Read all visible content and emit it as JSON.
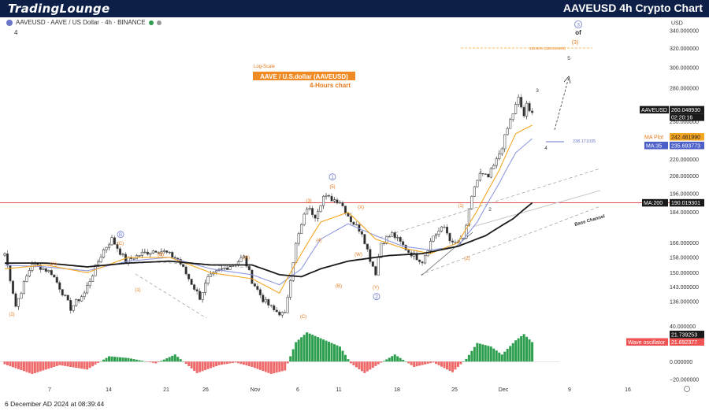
{
  "header": {
    "logo_text": "TradingLounge",
    "title": "AAVEUSD 4h Crypto Chart"
  },
  "symbol_info": {
    "text": "AAVEUSD · AAVE / US Dollar · 4h · BINANCE",
    "sub": "4"
  },
  "footer": {
    "timestamp": "6 December AD 2024 at 08:39:44"
  },
  "colors": {
    "header_bg": "#0e1f47",
    "orange": "#f5a623",
    "label_orange": "#e8791b",
    "blue_ma": "#8f99e0",
    "ma200": "#1a1a1a",
    "red_line": "#e05252",
    "osc_green": "#2e9e4f",
    "osc_red": "#ef6b6b",
    "wave_blue": "#6a77c9"
  },
  "annotations": {
    "log_scale": "Log-Scale",
    "chart_title_box": "AAVE / U.S.dollar (AAVEUSD)",
    "chart_subtitle": "4-Hours chart",
    "fib_label": "423.60% (320.844065)",
    "fib_238_label": "238.171035",
    "base_channel": "Base Channel",
    "top_of": "of",
    "top_circle": "3",
    "top_paren3": "(3)"
  },
  "wave_labels": [
    {
      "t": "(A)",
      "c": "o"
    },
    {
      "t": "(B)",
      "c": "o"
    },
    {
      "t": "(C)",
      "c": "o"
    },
    {
      "t": "B",
      "c": "b"
    },
    {
      "t": "(1)",
      "c": "o"
    },
    {
      "t": "(2)",
      "c": "o"
    },
    {
      "t": "(A)",
      "c": "o"
    },
    {
      "t": "(B)",
      "c": "o"
    },
    {
      "t": "(C)",
      "c": "o"
    },
    {
      "t": "(3)",
      "c": "o"
    },
    {
      "t": "(4)",
      "c": "o"
    },
    {
      "t": "(5)",
      "c": "o"
    },
    {
      "t": "1",
      "c": "b"
    },
    {
      "t": "(X)",
      "c": "o"
    },
    {
      "t": "(W)",
      "c": "o"
    },
    {
      "t": "(Y)",
      "c": "o"
    },
    {
      "t": "2",
      "c": "b"
    },
    {
      "t": "(1)",
      "c": "o"
    },
    {
      "t": "(2)",
      "c": "o"
    },
    {
      "t": "1",
      "c": "k"
    },
    {
      "t": "2",
      "c": "k"
    },
    {
      "t": "3",
      "c": "k"
    },
    {
      "t": "4",
      "c": "k"
    },
    {
      "t": "5",
      "c": "k"
    }
  ],
  "price_tags": {
    "usd": "USD",
    "last_symbol": "AAVEUSD",
    "last_price": "260.048930",
    "countdown": "02:20:16",
    "ma_plot_name": "MA Plot",
    "ma_plot_value": "242.481990",
    "ma35_name": "MA:35",
    "ma35_value": "235.693773",
    "ma200_name": "MA:200",
    "ma200_value": "190.019301",
    "osc_top_value": "21.739253",
    "osc_name": "Wave oscillator",
    "osc_value": "21.692377"
  },
  "chart_data": {
    "type": "candlestick",
    "y_scale": "log",
    "y_axis_ticks": [
      "340.000000",
      "320.000000",
      "300.000000",
      "280.000000",
      "250.000000",
      "230.000000",
      "220.000000",
      "208.000000",
      "196.000000",
      "184.000000",
      "166.000000",
      "158.000000",
      "150.000000",
      "143.000000",
      "136.000000"
    ],
    "osc_axis_ticks": [
      "40.000000",
      "0.000000",
      "−20.000000"
    ],
    "x_axis_ticks": [
      "7",
      "14",
      "21",
      "26",
      "Nov",
      "6",
      "11",
      "18",
      "25",
      "Dec",
      "9",
      "16"
    ],
    "ylim": [
      128,
      350
    ],
    "x_count": 200,
    "price_anchors": [
      [
        0,
        160
      ],
      [
        4,
        134
      ],
      [
        10,
        155
      ],
      [
        17,
        150
      ],
      [
        24,
        133
      ],
      [
        29,
        140
      ],
      [
        36,
        162
      ],
      [
        39,
        168
      ],
      [
        44,
        156
      ],
      [
        50,
        160
      ],
      [
        55,
        162
      ],
      [
        58,
        161
      ],
      [
        63,
        157
      ],
      [
        67,
        147
      ],
      [
        71,
        138
      ],
      [
        74,
        147
      ],
      [
        78,
        151
      ],
      [
        84,
        155
      ],
      [
        87,
        158
      ],
      [
        90,
        146
      ],
      [
        94,
        137
      ],
      [
        98,
        132
      ],
      [
        102,
        130
      ],
      [
        106,
        165
      ],
      [
        110,
        187
      ],
      [
        113,
        182
      ],
      [
        116,
        194
      ],
      [
        122,
        191
      ],
      [
        126,
        179
      ],
      [
        130,
        172
      ],
      [
        133,
        157
      ],
      [
        135,
        150
      ],
      [
        137,
        166
      ],
      [
        141,
        171
      ],
      [
        147,
        161
      ],
      [
        152,
        156
      ],
      [
        156,
        170
      ],
      [
        160,
        175
      ],
      [
        163,
        165
      ],
      [
        167,
        168
      ],
      [
        171,
        201
      ],
      [
        173,
        209
      ],
      [
        176,
        207
      ],
      [
        179,
        219
      ],
      [
        181,
        230
      ],
      [
        184,
        251
      ],
      [
        187,
        270
      ],
      [
        189,
        255
      ],
      [
        190,
        264
      ],
      [
        191,
        258
      ],
      [
        192,
        260
      ]
    ],
    "ma_orange_anchors": [
      [
        0,
        152
      ],
      [
        15,
        154
      ],
      [
        30,
        150
      ],
      [
        45,
        158
      ],
      [
        60,
        158
      ],
      [
        75,
        150
      ],
      [
        90,
        147
      ],
      [
        100,
        140
      ],
      [
        108,
        160
      ],
      [
        115,
        178
      ],
      [
        125,
        184
      ],
      [
        135,
        168
      ],
      [
        145,
        163
      ],
      [
        155,
        160
      ],
      [
        165,
        166
      ],
      [
        172,
        185
      ],
      [
        180,
        212
      ],
      [
        186,
        240
      ],
      [
        192,
        247
      ]
    ],
    "ma_blue_anchors": [
      [
        0,
        154
      ],
      [
        15,
        153
      ],
      [
        30,
        151
      ],
      [
        45,
        156
      ],
      [
        60,
        158
      ],
      [
        75,
        152
      ],
      [
        90,
        149
      ],
      [
        100,
        144
      ],
      [
        108,
        152
      ],
      [
        115,
        168
      ],
      [
        125,
        177
      ],
      [
        135,
        170
      ],
      [
        145,
        164
      ],
      [
        155,
        162
      ],
      [
        165,
        164
      ],
      [
        172,
        178
      ],
      [
        180,
        203
      ],
      [
        186,
        225
      ],
      [
        192,
        236
      ]
    ],
    "ma200_anchors": [
      [
        0,
        155
      ],
      [
        15,
        155
      ],
      [
        30,
        153
      ],
      [
        45,
        155
      ],
      [
        60,
        156
      ],
      [
        75,
        154
      ],
      [
        90,
        154
      ],
      [
        100,
        149
      ],
      [
        108,
        148
      ],
      [
        115,
        152
      ],
      [
        125,
        156
      ],
      [
        140,
        159
      ],
      [
        152,
        160
      ],
      [
        165,
        164
      ],
      [
        175,
        170
      ],
      [
        185,
        180
      ],
      [
        192,
        190
      ]
    ],
    "osc_anchors": [
      [
        0,
        -3
      ],
      [
        10,
        -14
      ],
      [
        20,
        -4
      ],
      [
        30,
        -9
      ],
      [
        38,
        6
      ],
      [
        45,
        4
      ],
      [
        55,
        -2
      ],
      [
        62,
        8
      ],
      [
        70,
        -13
      ],
      [
        78,
        -4
      ],
      [
        84,
        -1
      ],
      [
        90,
        -6
      ],
      [
        97,
        -14
      ],
      [
        102,
        -10
      ],
      [
        106,
        22
      ],
      [
        110,
        33
      ],
      [
        116,
        25
      ],
      [
        122,
        17
      ],
      [
        126,
        -2
      ],
      [
        131,
        -13
      ],
      [
        136,
        -3
      ],
      [
        142,
        8
      ],
      [
        149,
        -6
      ],
      [
        156,
        -1
      ],
      [
        163,
        -12
      ],
      [
        168,
        3
      ],
      [
        172,
        21
      ],
      [
        177,
        17
      ],
      [
        181,
        8
      ],
      [
        186,
        24
      ],
      [
        189,
        31
      ],
      [
        192,
        22
      ]
    ],
    "osc_ylim": [
      -22,
      42
    ],
    "ma200_level": 190.019301,
    "current_price": 260.04893,
    "fib_level": 320.844065,
    "fib_238_level": 238.171035
  }
}
